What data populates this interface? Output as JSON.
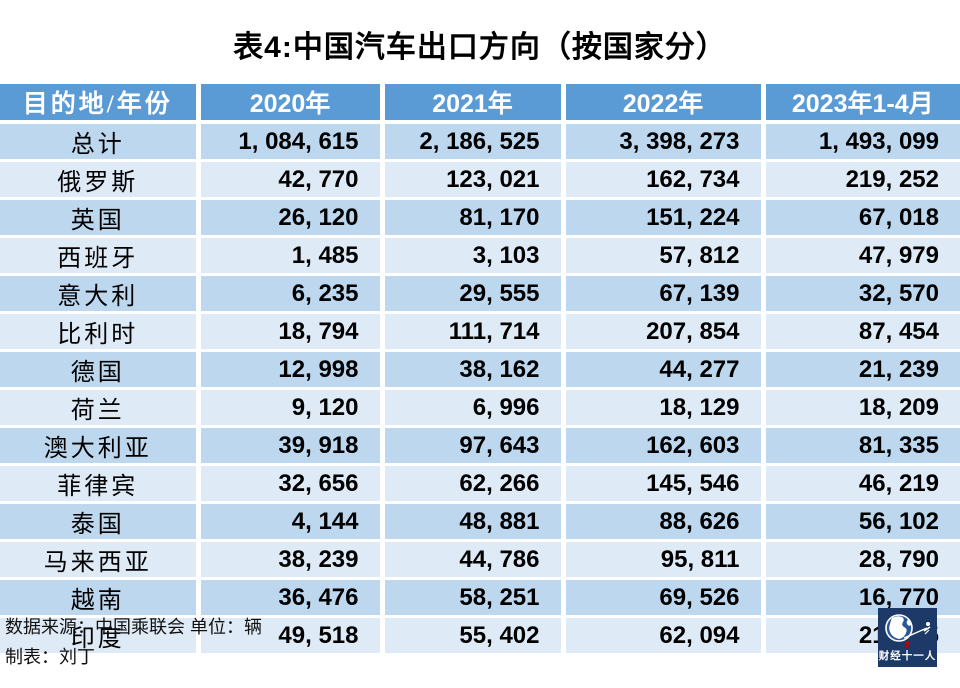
{
  "title": "表4:中国汽车出口方向（按国家分）",
  "table": {
    "columns": [
      "目的地/年份",
      "2020年",
      "2021年",
      "2022年",
      "2023年1-4月"
    ],
    "rows": [
      {
        "dest": "总计",
        "values": [
          "1, 084, 615",
          "2, 186, 525",
          "3, 398, 273",
          "1, 493, 099"
        ]
      },
      {
        "dest": "俄罗斯",
        "values": [
          "42, 770",
          "123, 021",
          "162, 734",
          "219, 252"
        ]
      },
      {
        "dest": "英国",
        "values": [
          "26, 120",
          "81, 170",
          "151, 224",
          "67, 018"
        ]
      },
      {
        "dest": "西班牙",
        "values": [
          "1, 485",
          "3, 103",
          "57, 812",
          "47, 979"
        ]
      },
      {
        "dest": "意大利",
        "values": [
          "6, 235",
          "29, 555",
          "67, 139",
          "32, 570"
        ]
      },
      {
        "dest": "比利时",
        "values": [
          "18, 794",
          "111, 714",
          "207, 854",
          "87, 454"
        ]
      },
      {
        "dest": "德国",
        "values": [
          "12, 998",
          "38, 162",
          "44, 277",
          "21, 239"
        ]
      },
      {
        "dest": "荷兰",
        "values": [
          "9, 120",
          "6, 996",
          "18, 129",
          "18, 209"
        ]
      },
      {
        "dest": "澳大利亚",
        "values": [
          "39, 918",
          "97, 643",
          "162, 603",
          "81, 335"
        ]
      },
      {
        "dest": "菲律宾",
        "values": [
          "32, 656",
          "62, 266",
          "145, 546",
          "46, 219"
        ]
      },
      {
        "dest": "泰国",
        "values": [
          "4, 144",
          "48, 881",
          "88, 626",
          "56, 102"
        ]
      },
      {
        "dest": "马来西亚",
        "values": [
          "38, 239",
          "44, 786",
          "95, 811",
          "28, 790"
        ]
      },
      {
        "dest": "越南",
        "values": [
          "36, 476",
          "58, 251",
          "69, 526",
          "16, 770"
        ]
      },
      {
        "dest": "印度",
        "values": [
          "49, 518",
          "55, 402",
          "62, 094",
          "21, 045"
        ]
      }
    ]
  },
  "footer": {
    "source_line": "数据来源：中国乘联会  单位：辆",
    "author_line": "制表：刘丁"
  },
  "logo": {
    "text": "财经十一人"
  },
  "colors": {
    "header_bg": "#5B9BD5",
    "row_dark": "#BDD7EE",
    "row_light": "#DEEBF7",
    "logo_navy": "#1C3968",
    "logo_red": "#C00000"
  },
  "chart_data": {
    "type": "table",
    "title": "表4:中国汽车出口方向（按国家分）",
    "columns": [
      "目的地/年份",
      "2020年",
      "2021年",
      "2022年",
      "2023年1-4月"
    ],
    "unit": "辆",
    "source": "中国乘联会",
    "author": "刘丁",
    "rows": [
      {
        "destination": "总计",
        "y2020": 1084615,
        "y2021": 2186525,
        "y2022": 3398273,
        "y2023_1_4": 1493099
      },
      {
        "destination": "俄罗斯",
        "y2020": 42770,
        "y2021": 123021,
        "y2022": 162734,
        "y2023_1_4": 219252
      },
      {
        "destination": "英国",
        "y2020": 26120,
        "y2021": 81170,
        "y2022": 151224,
        "y2023_1_4": 67018
      },
      {
        "destination": "西班牙",
        "y2020": 1485,
        "y2021": 3103,
        "y2022": 57812,
        "y2023_1_4": 47979
      },
      {
        "destination": "意大利",
        "y2020": 6235,
        "y2021": 29555,
        "y2022": 67139,
        "y2023_1_4": 32570
      },
      {
        "destination": "比利时",
        "y2020": 18794,
        "y2021": 111714,
        "y2022": 207854,
        "y2023_1_4": 87454
      },
      {
        "destination": "德国",
        "y2020": 12998,
        "y2021": 38162,
        "y2022": 44277,
        "y2023_1_4": 21239
      },
      {
        "destination": "荷兰",
        "y2020": 9120,
        "y2021": 6996,
        "y2022": 18129,
        "y2023_1_4": 18209
      },
      {
        "destination": "澳大利亚",
        "y2020": 39918,
        "y2021": 97643,
        "y2022": 162603,
        "y2023_1_4": 81335
      },
      {
        "destination": "菲律宾",
        "y2020": 32656,
        "y2021": 62266,
        "y2022": 145546,
        "y2023_1_4": 46219
      },
      {
        "destination": "泰国",
        "y2020": 4144,
        "y2021": 48881,
        "y2022": 88626,
        "y2023_1_4": 56102
      },
      {
        "destination": "马来西亚",
        "y2020": 38239,
        "y2021": 44786,
        "y2022": 95811,
        "y2023_1_4": 28790
      },
      {
        "destination": "越南",
        "y2020": 36476,
        "y2021": 58251,
        "y2022": 69526,
        "y2023_1_4": 16770
      },
      {
        "destination": "印度",
        "y2020": 49518,
        "y2021": 55402,
        "y2022": 62094,
        "y2023_1_4": 21045
      }
    ]
  }
}
